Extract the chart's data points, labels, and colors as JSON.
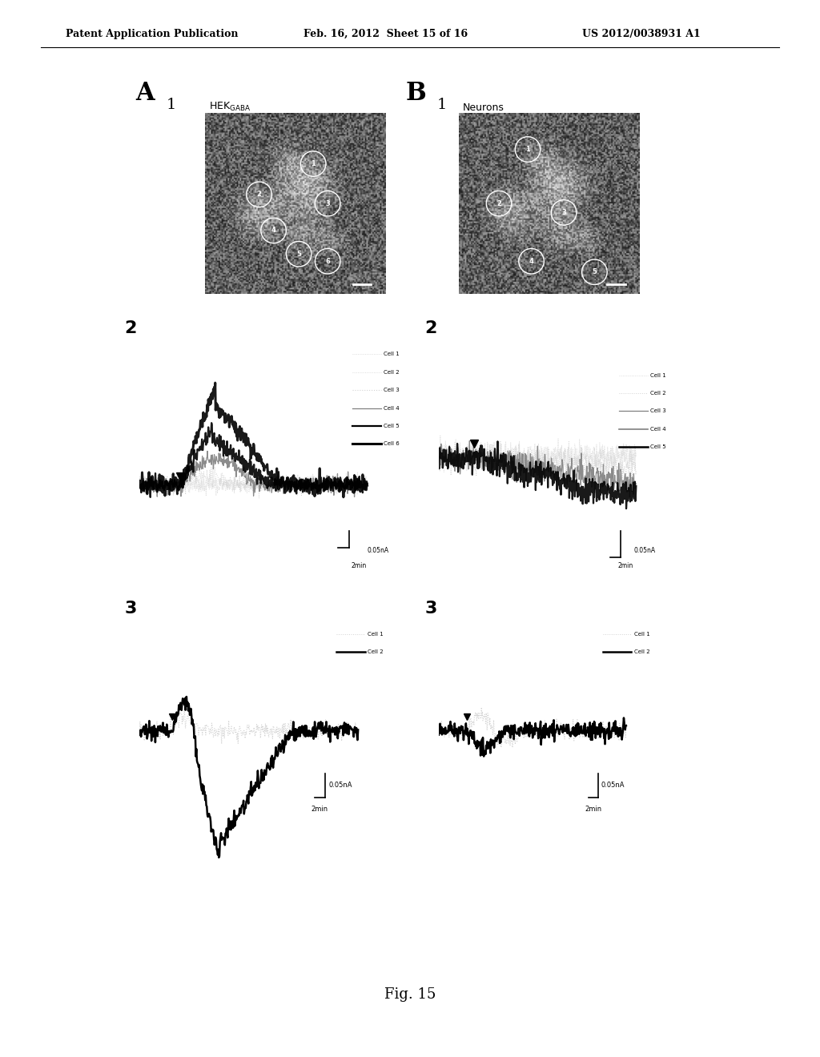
{
  "header_left": "Patent Application Publication",
  "header_center": "Feb. 16, 2012  Sheet 15 of 16",
  "header_right": "US 2012/0038931 A1",
  "A1_title": "HEK",
  "A1_title_sub": "GABA",
  "B1_title": "Neurons",
  "fig_label": "Fig. 15",
  "bg_color": "#ffffff",
  "text_color": "#000000",
  "legend_A2": [
    "Cell 1",
    "Cell 2",
    "Cell 3",
    "Cell 4",
    "Cell 5",
    "Cell 6"
  ],
  "legend_B2": [
    "Cell 1",
    "Cell 2",
    "Cell 3",
    "Cell 4",
    "Cell 5"
  ],
  "legend_A3": [
    "Cell 1",
    "Cell 2"
  ],
  "legend_B3": [
    "Cell 1",
    "Cell 2"
  ]
}
